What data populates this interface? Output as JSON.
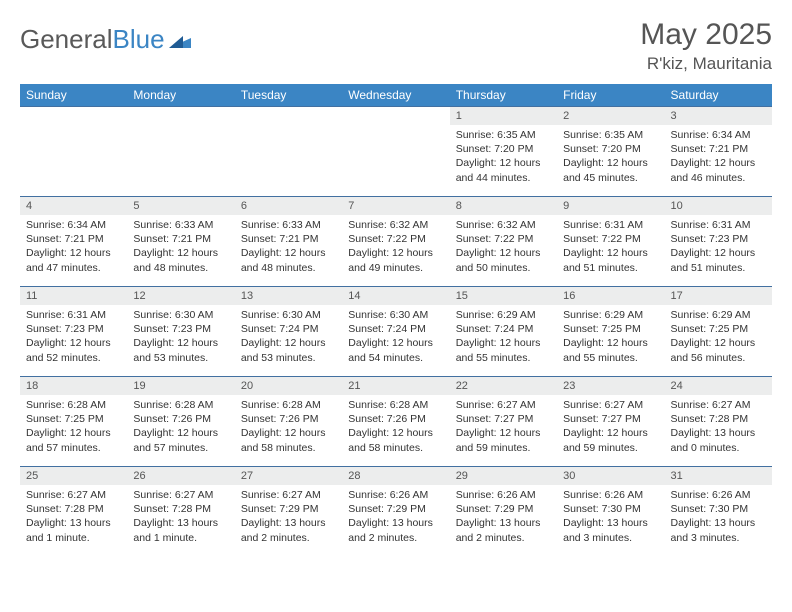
{
  "logo": {
    "word1": "General",
    "word2": "Blue"
  },
  "title": "May 2025",
  "location": "R'kiz, Mauritania",
  "day_headers": [
    "Sunday",
    "Monday",
    "Tuesday",
    "Wednesday",
    "Thursday",
    "Friday",
    "Saturday"
  ],
  "colors": {
    "header_bg": "#3b85c4",
    "daynum_bg": "#eceded",
    "border": "#4270a1",
    "text": "#333333"
  },
  "weeks": [
    [
      {
        "n": "",
        "sr": "",
        "ss": "",
        "d1": "",
        "d2": ""
      },
      {
        "n": "",
        "sr": "",
        "ss": "",
        "d1": "",
        "d2": ""
      },
      {
        "n": "",
        "sr": "",
        "ss": "",
        "d1": "",
        "d2": ""
      },
      {
        "n": "",
        "sr": "",
        "ss": "",
        "d1": "",
        "d2": ""
      },
      {
        "n": "1",
        "sr": "Sunrise: 6:35 AM",
        "ss": "Sunset: 7:20 PM",
        "d1": "Daylight: 12 hours",
        "d2": "and 44 minutes."
      },
      {
        "n": "2",
        "sr": "Sunrise: 6:35 AM",
        "ss": "Sunset: 7:20 PM",
        "d1": "Daylight: 12 hours",
        "d2": "and 45 minutes."
      },
      {
        "n": "3",
        "sr": "Sunrise: 6:34 AM",
        "ss": "Sunset: 7:21 PM",
        "d1": "Daylight: 12 hours",
        "d2": "and 46 minutes."
      }
    ],
    [
      {
        "n": "4",
        "sr": "Sunrise: 6:34 AM",
        "ss": "Sunset: 7:21 PM",
        "d1": "Daylight: 12 hours",
        "d2": "and 47 minutes."
      },
      {
        "n": "5",
        "sr": "Sunrise: 6:33 AM",
        "ss": "Sunset: 7:21 PM",
        "d1": "Daylight: 12 hours",
        "d2": "and 48 minutes."
      },
      {
        "n": "6",
        "sr": "Sunrise: 6:33 AM",
        "ss": "Sunset: 7:21 PM",
        "d1": "Daylight: 12 hours",
        "d2": "and 48 minutes."
      },
      {
        "n": "7",
        "sr": "Sunrise: 6:32 AM",
        "ss": "Sunset: 7:22 PM",
        "d1": "Daylight: 12 hours",
        "d2": "and 49 minutes."
      },
      {
        "n": "8",
        "sr": "Sunrise: 6:32 AM",
        "ss": "Sunset: 7:22 PM",
        "d1": "Daylight: 12 hours",
        "d2": "and 50 minutes."
      },
      {
        "n": "9",
        "sr": "Sunrise: 6:31 AM",
        "ss": "Sunset: 7:22 PM",
        "d1": "Daylight: 12 hours",
        "d2": "and 51 minutes."
      },
      {
        "n": "10",
        "sr": "Sunrise: 6:31 AM",
        "ss": "Sunset: 7:23 PM",
        "d1": "Daylight: 12 hours",
        "d2": "and 51 minutes."
      }
    ],
    [
      {
        "n": "11",
        "sr": "Sunrise: 6:31 AM",
        "ss": "Sunset: 7:23 PM",
        "d1": "Daylight: 12 hours",
        "d2": "and 52 minutes."
      },
      {
        "n": "12",
        "sr": "Sunrise: 6:30 AM",
        "ss": "Sunset: 7:23 PM",
        "d1": "Daylight: 12 hours",
        "d2": "and 53 minutes."
      },
      {
        "n": "13",
        "sr": "Sunrise: 6:30 AM",
        "ss": "Sunset: 7:24 PM",
        "d1": "Daylight: 12 hours",
        "d2": "and 53 minutes."
      },
      {
        "n": "14",
        "sr": "Sunrise: 6:30 AM",
        "ss": "Sunset: 7:24 PM",
        "d1": "Daylight: 12 hours",
        "d2": "and 54 minutes."
      },
      {
        "n": "15",
        "sr": "Sunrise: 6:29 AM",
        "ss": "Sunset: 7:24 PM",
        "d1": "Daylight: 12 hours",
        "d2": "and 55 minutes."
      },
      {
        "n": "16",
        "sr": "Sunrise: 6:29 AM",
        "ss": "Sunset: 7:25 PM",
        "d1": "Daylight: 12 hours",
        "d2": "and 55 minutes."
      },
      {
        "n": "17",
        "sr": "Sunrise: 6:29 AM",
        "ss": "Sunset: 7:25 PM",
        "d1": "Daylight: 12 hours",
        "d2": "and 56 minutes."
      }
    ],
    [
      {
        "n": "18",
        "sr": "Sunrise: 6:28 AM",
        "ss": "Sunset: 7:25 PM",
        "d1": "Daylight: 12 hours",
        "d2": "and 57 minutes."
      },
      {
        "n": "19",
        "sr": "Sunrise: 6:28 AM",
        "ss": "Sunset: 7:26 PM",
        "d1": "Daylight: 12 hours",
        "d2": "and 57 minutes."
      },
      {
        "n": "20",
        "sr": "Sunrise: 6:28 AM",
        "ss": "Sunset: 7:26 PM",
        "d1": "Daylight: 12 hours",
        "d2": "and 58 minutes."
      },
      {
        "n": "21",
        "sr": "Sunrise: 6:28 AM",
        "ss": "Sunset: 7:26 PM",
        "d1": "Daylight: 12 hours",
        "d2": "and 58 minutes."
      },
      {
        "n": "22",
        "sr": "Sunrise: 6:27 AM",
        "ss": "Sunset: 7:27 PM",
        "d1": "Daylight: 12 hours",
        "d2": "and 59 minutes."
      },
      {
        "n": "23",
        "sr": "Sunrise: 6:27 AM",
        "ss": "Sunset: 7:27 PM",
        "d1": "Daylight: 12 hours",
        "d2": "and 59 minutes."
      },
      {
        "n": "24",
        "sr": "Sunrise: 6:27 AM",
        "ss": "Sunset: 7:28 PM",
        "d1": "Daylight: 13 hours",
        "d2": "and 0 minutes."
      }
    ],
    [
      {
        "n": "25",
        "sr": "Sunrise: 6:27 AM",
        "ss": "Sunset: 7:28 PM",
        "d1": "Daylight: 13 hours",
        "d2": "and 1 minute."
      },
      {
        "n": "26",
        "sr": "Sunrise: 6:27 AM",
        "ss": "Sunset: 7:28 PM",
        "d1": "Daylight: 13 hours",
        "d2": "and 1 minute."
      },
      {
        "n": "27",
        "sr": "Sunrise: 6:27 AM",
        "ss": "Sunset: 7:29 PM",
        "d1": "Daylight: 13 hours",
        "d2": "and 2 minutes."
      },
      {
        "n": "28",
        "sr": "Sunrise: 6:26 AM",
        "ss": "Sunset: 7:29 PM",
        "d1": "Daylight: 13 hours",
        "d2": "and 2 minutes."
      },
      {
        "n": "29",
        "sr": "Sunrise: 6:26 AM",
        "ss": "Sunset: 7:29 PM",
        "d1": "Daylight: 13 hours",
        "d2": "and 2 minutes."
      },
      {
        "n": "30",
        "sr": "Sunrise: 6:26 AM",
        "ss": "Sunset: 7:30 PM",
        "d1": "Daylight: 13 hours",
        "d2": "and 3 minutes."
      },
      {
        "n": "31",
        "sr": "Sunrise: 6:26 AM",
        "ss": "Sunset: 7:30 PM",
        "d1": "Daylight: 13 hours",
        "d2": "and 3 minutes."
      }
    ]
  ]
}
